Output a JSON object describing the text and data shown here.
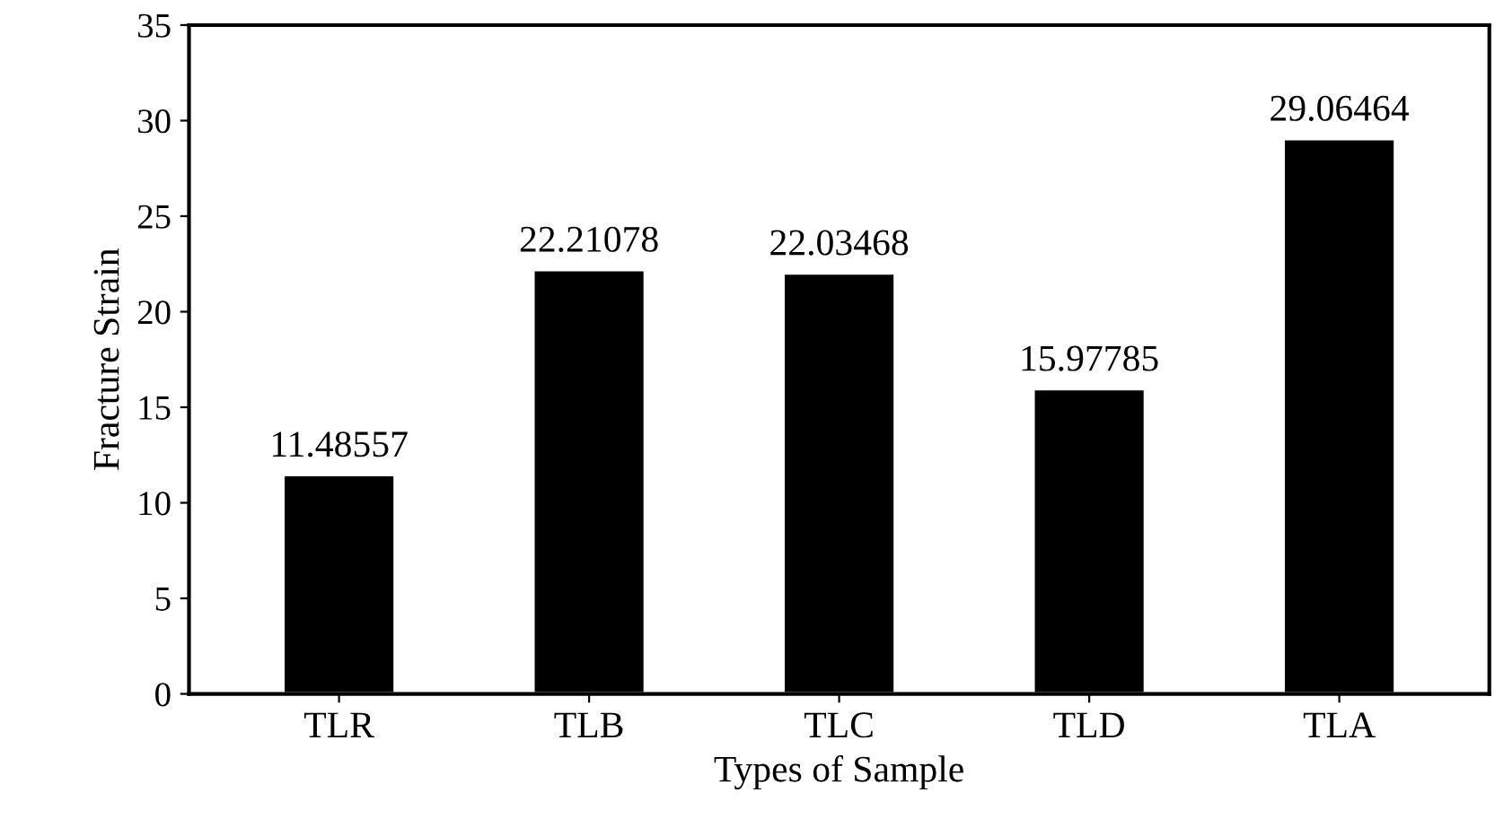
{
  "chart_data": {
    "type": "bar",
    "xlabel": "Types of Sample",
    "ylabel": "Fracture Strain",
    "categories": [
      "TLR",
      "TLB",
      "TLC",
      "TLD",
      "TLA"
    ],
    "values": [
      11.48557,
      22.21078,
      22.03468,
      15.97785,
      29.06464
    ],
    "color": "#000000",
    "data_labels": true,
    "ylim": [
      0,
      35
    ],
    "yticks": [
      0,
      5,
      10,
      15,
      20,
      25,
      30,
      35
    ],
    "grid": false
  }
}
